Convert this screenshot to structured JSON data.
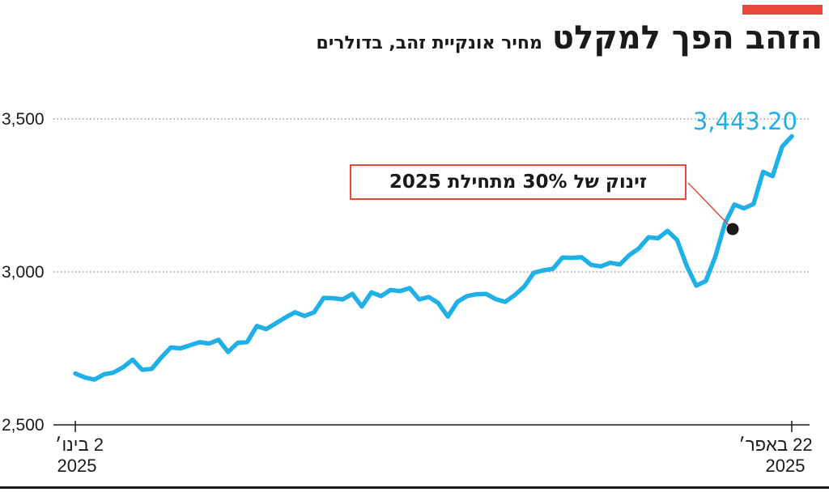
{
  "header": {
    "title": "הזהב הפך למקלט",
    "subtitle": "מחיר אונקיית זהב, בדולרים",
    "accent_color": "#e8483c"
  },
  "annotation": {
    "text": "זינוק של 30% מתחילת 2025"
  },
  "chart_data": {
    "type": "line",
    "title": "הזהב הפך למקלט",
    "subtitle": "מחיר אונקיית זהב, בדולרים",
    "xlabel": "",
    "ylabel": "",
    "ylim": [
      2500,
      3500
    ],
    "yticks": [
      {
        "value": 2500,
        "label": "2,500"
      },
      {
        "value": 3000,
        "label": "3,000"
      },
      {
        "value": 3500,
        "label": "3,500"
      }
    ],
    "grid": true,
    "line_color": "#1fb0e8",
    "x_start_label": {
      "line1": "2 בינו׳",
      "line2": "2025"
    },
    "x_end_label": {
      "line1": "22 באפר׳",
      "line2": "2025"
    },
    "last_value_label": "3,443.20",
    "annotated_index": 62,
    "values": [
      2668,
      2655,
      2648,
      2665,
      2671,
      2688,
      2713,
      2680,
      2683,
      2720,
      2753,
      2750,
      2760,
      2770,
      2766,
      2778,
      2738,
      2768,
      2771,
      2823,
      2813,
      2832,
      2851,
      2868,
      2856,
      2868,
      2915,
      2914,
      2910,
      2928,
      2887,
      2933,
      2921,
      2941,
      2937,
      2947,
      2910,
      2918,
      2898,
      2854,
      2902,
      2921,
      2927,
      2928,
      2911,
      2902,
      2924,
      2952,
      2997,
      3005,
      3010,
      3047,
      3046,
      3048,
      3023,
      3018,
      3030,
      3024,
      3055,
      3077,
      3113,
      3110,
      3134,
      3104,
      3020,
      2955,
      2970,
      3050,
      3158,
      3220,
      3208,
      3222,
      3327,
      3313,
      3410,
      3443
    ]
  }
}
